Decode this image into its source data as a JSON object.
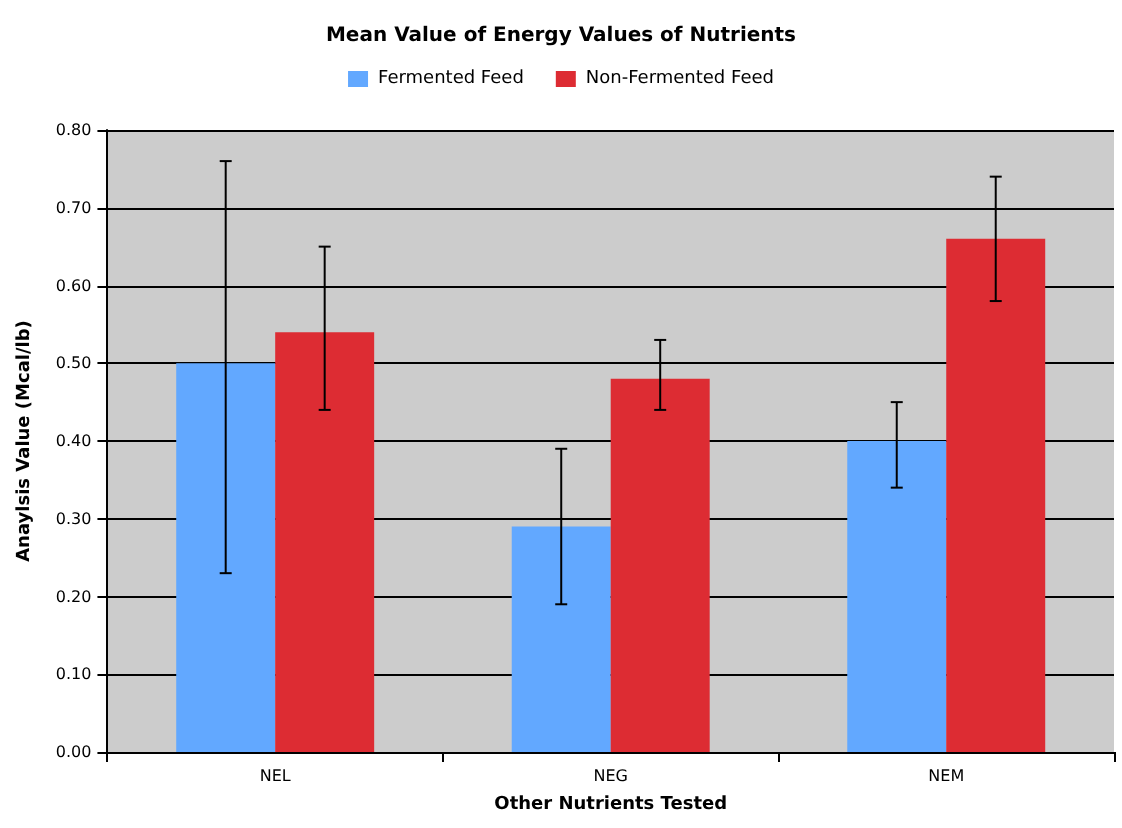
{
  "chart_data": {
    "type": "bar",
    "title": "Mean Value of Energy Values of Nutrients",
    "xlabel": "Other Nutrients Tested",
    "ylabel": "Anaylsis Value (Mcal/lb)",
    "categories": [
      "NEL",
      "NEG",
      "NEM"
    ],
    "series": [
      {
        "name": "Fermented Feed",
        "color": "#62a8ff",
        "values": [
          0.5,
          0.29,
          0.4
        ],
        "errors": [
          [
            0.23,
            0.76
          ],
          [
            0.19,
            0.39
          ],
          [
            0.34,
            0.45
          ]
        ]
      },
      {
        "name": "Non-Fermented Feed",
        "color": "#dd2c33",
        "values": [
          0.54,
          0.48,
          0.66
        ],
        "errors": [
          [
            0.44,
            0.65
          ],
          [
            0.44,
            0.53
          ],
          [
            0.58,
            0.74
          ]
        ]
      }
    ],
    "ylim": [
      0,
      0.8
    ],
    "yticks": [
      {
        "value": 0,
        "label": "0.00"
      },
      {
        "value": 0.1,
        "label": "0.10"
      },
      {
        "value": 0.2,
        "label": "0.20"
      },
      {
        "value": 0.3,
        "label": "0.30"
      },
      {
        "value": 0.4,
        "label": "0.40"
      },
      {
        "value": 0.5,
        "label": "0.50"
      },
      {
        "value": 0.6,
        "label": "0.60"
      },
      {
        "value": 0.7,
        "label": "0.70"
      },
      {
        "value": 0.8,
        "label": "0.80"
      }
    ],
    "grid": "y",
    "legend": "top"
  }
}
